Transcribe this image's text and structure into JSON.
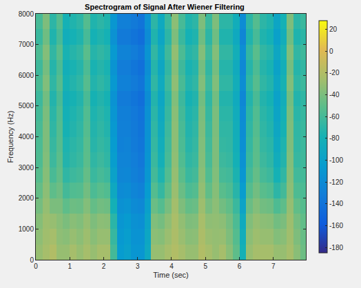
{
  "chart_data": {
    "type": "heatmap",
    "title": "Spectrogram of Signal After Wiener Filtering",
    "x_label": "Time (sec)",
    "y_label": "Frequency (Hz)",
    "x": [
      0.1,
      0.3,
      0.5,
      0.7,
      0.9,
      1.1,
      1.3,
      1.5,
      1.7,
      1.9,
      2.1,
      2.3,
      2.5,
      2.7,
      2.9,
      3.1,
      3.3,
      3.5,
      3.7,
      3.9,
      4.1,
      4.3,
      4.5,
      4.7,
      4.9,
      5.1,
      5.3,
      5.5,
      5.7,
      5.9,
      6.1,
      6.3,
      6.5,
      6.7,
      6.9,
      7.1,
      7.3,
      7.5,
      7.7,
      7.9
    ],
    "y": [
      250,
      750,
      1250,
      1750,
      2250,
      2750,
      3250,
      3750,
      4250,
      4750,
      5250,
      5750,
      6250,
      6750,
      7250,
      7750
    ],
    "z": [
      [
        -30,
        -25,
        -20,
        -30,
        -30,
        -25,
        -30,
        -25,
        -30,
        -25,
        -25,
        -60,
        -105,
        -100,
        -110,
        -110,
        -90,
        -30,
        -30,
        -25,
        -20,
        -25,
        -30,
        -30,
        -20,
        -25,
        -30,
        -25,
        -35,
        -50,
        -80,
        -30,
        -25,
        -25,
        -25,
        -30,
        -30,
        -25,
        -35,
        -45
      ],
      [
        -33,
        -27,
        -25,
        -33,
        -35,
        -30,
        -34,
        -28,
        -35,
        -30,
        -30,
        -65,
        -108,
        -103,
        -113,
        -113,
        -93,
        -34,
        -36,
        -29,
        -22,
        -29,
        -35,
        -34,
        -22,
        -29,
        -31,
        -30,
        -39,
        -54,
        -84,
        -34,
        -28,
        -30,
        -30,
        -37,
        -35,
        -27,
        -39,
        -47
      ],
      [
        -36,
        -28,
        -30,
        -35,
        -40,
        -35,
        -38,
        -31,
        -39,
        -34,
        -35,
        -70,
        -110,
        -106,
        -115,
        -116,
        -95,
        -38,
        -42,
        -33,
        -23,
        -32,
        -39,
        -38,
        -24,
        -33,
        -32,
        -34,
        -42,
        -57,
        -88,
        -38,
        -31,
        -34,
        -35,
        -43,
        -40,
        -28,
        -42,
        -49
      ],
      [
        -42,
        -31,
        -40,
        -40,
        -50,
        -45,
        -46,
        -37,
        -48,
        -43,
        -45,
        -80,
        -115,
        -112,
        -120,
        -122,
        -100,
        -46,
        -54,
        -41,
        -26,
        -39,
        -48,
        -46,
        -28,
        -41,
        -34,
        -43,
        -49,
        -64,
        -96,
        -46,
        -37,
        -43,
        -45,
        -56,
        -50,
        -31,
        -49,
        -53
      ],
      [
        -48,
        -34,
        -50,
        -45,
        -60,
        -55,
        -54,
        -43,
        -57,
        -52,
        -55,
        -90,
        -120,
        -118,
        -125,
        -128,
        -105,
        -54,
        -66,
        -49,
        -29,
        -46,
        -57,
        -54,
        -32,
        -49,
        -36,
        -52,
        -56,
        -71,
        -104,
        -54,
        -43,
        -52,
        -55,
        -69,
        -60,
        -34,
        -56,
        -57
      ],
      [
        -53,
        -36,
        -58,
        -49,
        -68,
        -63,
        -60,
        -48,
        -64,
        -59,
        -63,
        -98,
        -124,
        -123,
        -129,
        -133,
        -109,
        -60,
        -75,
        -55,
        -31,
        -51,
        -64,
        -60,
        -35,
        -55,
        -38,
        -59,
        -61,
        -76,
        -110,
        -60,
        -48,
        -59,
        -63,
        -79,
        -68,
        -36,
        -61,
        -60
      ],
      [
        -56,
        -38,
        -63,
        -51,
        -73,
        -68,
        -64,
        -51,
        -68,
        -63,
        -68,
        -103,
        -126,
        -126,
        -131,
        -136,
        -111,
        -64,
        -81,
        -59,
        -33,
        -55,
        -68,
        -64,
        -37,
        -59,
        -39,
        -63,
        -65,
        -80,
        -114,
        -64,
        -51,
        -63,
        -68,
        -85,
        -73,
        -38,
        -65,
        -62
      ],
      [
        -57,
        -39,
        -65,
        -53,
        -75,
        -70,
        -66,
        -52,
        -71,
        -66,
        -70,
        -105,
        -128,
        -127,
        -133,
        -137,
        -113,
        -66,
        -84,
        -61,
        -34,
        -57,
        -71,
        -66,
        -38,
        -61,
        -39,
        -66,
        -67,
        -82,
        -116,
        -66,
        -52,
        -66,
        -70,
        -89,
        -75,
        -39,
        -67,
        -63
      ],
      [
        -58,
        -39,
        -68,
        -54,
        -78,
        -73,
        -68,
        -54,
        -73,
        -68,
        -73,
        -108,
        -129,
        -129,
        -134,
        -139,
        -114,
        -68,
        -87,
        -63,
        -34,
        -58,
        -73,
        -68,
        -39,
        -63,
        -40,
        -68,
        -68,
        -83,
        -118,
        -68,
        -54,
        -68,
        -73,
        -92,
        -78,
        -39,
        -68,
        -64
      ],
      [
        -60,
        -40,
        -70,
        -55,
        -80,
        -75,
        -70,
        -55,
        -75,
        -70,
        -75,
        -110,
        -130,
        -130,
        -135,
        -140,
        -115,
        -70,
        -90,
        -65,
        -35,
        -60,
        -75,
        -70,
        -40,
        -65,
        -40,
        -70,
        -70,
        -85,
        -120,
        -70,
        -55,
        -70,
        -75,
        -95,
        -80,
        -40,
        -70,
        -65
      ],
      [
        -63,
        -43,
        -73,
        -58,
        -83,
        -78,
        -73,
        -58,
        -78,
        -73,
        -78,
        -113,
        -133,
        -133,
        -138,
        -143,
        -118,
        -73,
        -93,
        -68,
        -38,
        -63,
        -78,
        -73,
        -43,
        -68,
        -43,
        -73,
        -73,
        -88,
        -123,
        -73,
        -58,
        -73,
        -78,
        -98,
        -83,
        -43,
        -73,
        -68
      ],
      [
        -58,
        -38,
        -68,
        -53,
        -78,
        -73,
        -68,
        -53,
        -73,
        -68,
        -73,
        -108,
        -128,
        -128,
        -133,
        -138,
        -113,
        -68,
        -88,
        -63,
        -33,
        -58,
        -73,
        -68,
        -38,
        -63,
        -38,
        -68,
        -68,
        -83,
        -118,
        -68,
        -53,
        -68,
        -73,
        -93,
        -78,
        -38,
        -68,
        -63
      ],
      [
        -62,
        -42,
        -72,
        -57,
        -82,
        -77,
        -72,
        -57,
        -77,
        -72,
        -77,
        -112,
        -132,
        -132,
        -137,
        -142,
        -117,
        -72,
        -92,
        -67,
        -37,
        -62,
        -77,
        -72,
        -42,
        -67,
        -42,
        -72,
        -72,
        -87,
        -122,
        -72,
        -57,
        -72,
        -77,
        -97,
        -82,
        -42,
        -72,
        -67
      ],
      [
        -57,
        -37,
        -67,
        -52,
        -77,
        -72,
        -67,
        -52,
        -72,
        -67,
        -72,
        -107,
        -127,
        -127,
        -132,
        -137,
        -112,
        -67,
        -87,
        -62,
        -32,
        -57,
        -72,
        -67,
        -37,
        -62,
        -37,
        -67,
        -67,
        -82,
        -117,
        -67,
        -52,
        -67,
        -72,
        -92,
        -77,
        -37,
        -67,
        -62
      ],
      [
        -64,
        -44,
        -74,
        -59,
        -84,
        -79,
        -74,
        -59,
        -79,
        -74,
        -79,
        -114,
        -134,
        -134,
        -139,
        -144,
        -119,
        -74,
        -94,
        -69,
        -39,
        -64,
        -79,
        -74,
        -44,
        -69,
        -44,
        -74,
        -74,
        -89,
        -124,
        -74,
        -59,
        -74,
        -79,
        -99,
        -84,
        -44,
        -74,
        -69
      ],
      [
        -59,
        -39,
        -69,
        -54,
        -79,
        -74,
        -69,
        -54,
        -74,
        -69,
        -74,
        -109,
        -129,
        -129,
        -134,
        -139,
        -114,
        -69,
        -89,
        -64,
        -34,
        -59,
        -74,
        -69,
        -39,
        -64,
        -39,
        -69,
        -69,
        -84,
        -119,
        -69,
        -54,
        -69,
        -74,
        -94,
        -79,
        -39,
        -69,
        -64
      ]
    ],
    "xlim": [
      0,
      7.96
    ],
    "xticks": [
      0,
      1,
      2,
      3,
      4,
      5,
      6,
      7
    ],
    "ylim": [
      0,
      8000
    ],
    "yticks": [
      0,
      1000,
      2000,
      3000,
      4000,
      5000,
      6000,
      7000,
      8000
    ],
    "colorbar_range": [
      -185,
      28
    ],
    "colorbar_ticks": [
      -180,
      -160,
      -140,
      -120,
      -100,
      -80,
      -60,
      -40,
      -20,
      0,
      20
    ]
  }
}
